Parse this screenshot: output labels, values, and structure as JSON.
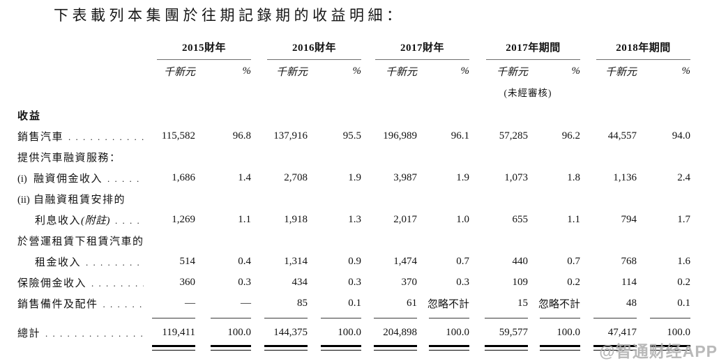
{
  "title": "下表載列本集團於往期記錄期的收益明細：",
  "watermark": "@智通财经APP",
  "table": {
    "unit_label": "千新元",
    "pct_label": "%",
    "periods": [
      {
        "label": "2015財年",
        "note": ""
      },
      {
        "label": "2016財年",
        "note": ""
      },
      {
        "label": "2017財年",
        "note": ""
      },
      {
        "label": "2017年期間",
        "note": "(未經審核)"
      },
      {
        "label": "2018年期間",
        "note": ""
      }
    ],
    "rows": [
      {
        "kind": "section",
        "label": "收益"
      },
      {
        "kind": "data",
        "label": "銷售汽車",
        "leader": true,
        "values": [
          "115,582",
          "96.8",
          "137,916",
          "95.5",
          "196,989",
          "96.1",
          "57,285",
          "96.2",
          "44,557",
          "94.0"
        ]
      },
      {
        "kind": "text",
        "label": "提供汽車融資服務："
      },
      {
        "kind": "data",
        "prefix": "(i)",
        "label": "融資佣金收入",
        "leader": true,
        "values": [
          "1,686",
          "1.4",
          "2,708",
          "1.9",
          "3,987",
          "1.9",
          "1,073",
          "1.8",
          "1,136",
          "2.4"
        ]
      },
      {
        "kind": "text",
        "prefix": "(ii)",
        "label": "自融資租賃安排的"
      },
      {
        "kind": "data",
        "label": "利息收入",
        "note": "(附註)",
        "indent": true,
        "leader": true,
        "values": [
          "1,269",
          "1.1",
          "1,918",
          "1.3",
          "2,017",
          "1.0",
          "655",
          "1.1",
          "794",
          "1.7"
        ]
      },
      {
        "kind": "text",
        "label": "於營運租賃下租賃汽車的"
      },
      {
        "kind": "data",
        "label": "租金收入",
        "indent": true,
        "leader": true,
        "values": [
          "514",
          "0.4",
          "1,314",
          "0.9",
          "1,474",
          "0.7",
          "440",
          "0.7",
          "768",
          "1.6"
        ]
      },
      {
        "kind": "data",
        "label": "保險佣金收入",
        "leader": true,
        "values": [
          "360",
          "0.3",
          "434",
          "0.3",
          "370",
          "0.3",
          "109",
          "0.2",
          "114",
          "0.2"
        ]
      },
      {
        "kind": "data",
        "label": "銷售備件及配件",
        "leader": true,
        "values": [
          "—",
          "—",
          "85",
          "0.1",
          "61",
          "忽略不計",
          "15",
          "忽略不計",
          "48",
          "0.1"
        ]
      },
      {
        "kind": "sep"
      },
      {
        "kind": "total",
        "label": "總計",
        "leader": true,
        "values": [
          "119,411",
          "100.0",
          "144,375",
          "100.0",
          "204,898",
          "100.0",
          "59,577",
          "100.0",
          "47,417",
          "100.0"
        ]
      },
      {
        "kind": "dsep"
      }
    ]
  }
}
